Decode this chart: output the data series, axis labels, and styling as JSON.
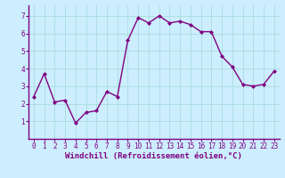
{
  "x": [
    0,
    1,
    2,
    3,
    4,
    5,
    6,
    7,
    8,
    9,
    10,
    11,
    12,
    13,
    14,
    15,
    16,
    17,
    18,
    19,
    20,
    21,
    22,
    23
  ],
  "y": [
    2.4,
    3.7,
    2.1,
    2.2,
    0.9,
    1.5,
    1.6,
    2.7,
    2.4,
    5.6,
    6.9,
    6.6,
    7.0,
    6.6,
    6.7,
    6.5,
    6.1,
    6.1,
    4.7,
    4.1,
    3.1,
    3.0,
    3.1,
    3.85
  ],
  "line_color": "#800080",
  "marker": "D",
  "marker_size": 2.0,
  "line_width": 1.0,
  "bg_color": "#cceeff",
  "grid_color": "#aadddd",
  "xlabel": "Windchill (Refroidissement éolien,°C)",
  "xlabel_color": "#800080",
  "xlabel_fontsize": 6.5,
  "tick_color": "#800080",
  "tick_fontsize": 5.5,
  "ylim": [
    0,
    7.6
  ],
  "yticks": [
    1,
    2,
    3,
    4,
    5,
    6,
    7
  ],
  "xlim": [
    -0.5,
    23.5
  ],
  "xticks": [
    0,
    1,
    2,
    3,
    4,
    5,
    6,
    7,
    8,
    9,
    10,
    11,
    12,
    13,
    14,
    15,
    16,
    17,
    18,
    19,
    20,
    21,
    22,
    23
  ]
}
